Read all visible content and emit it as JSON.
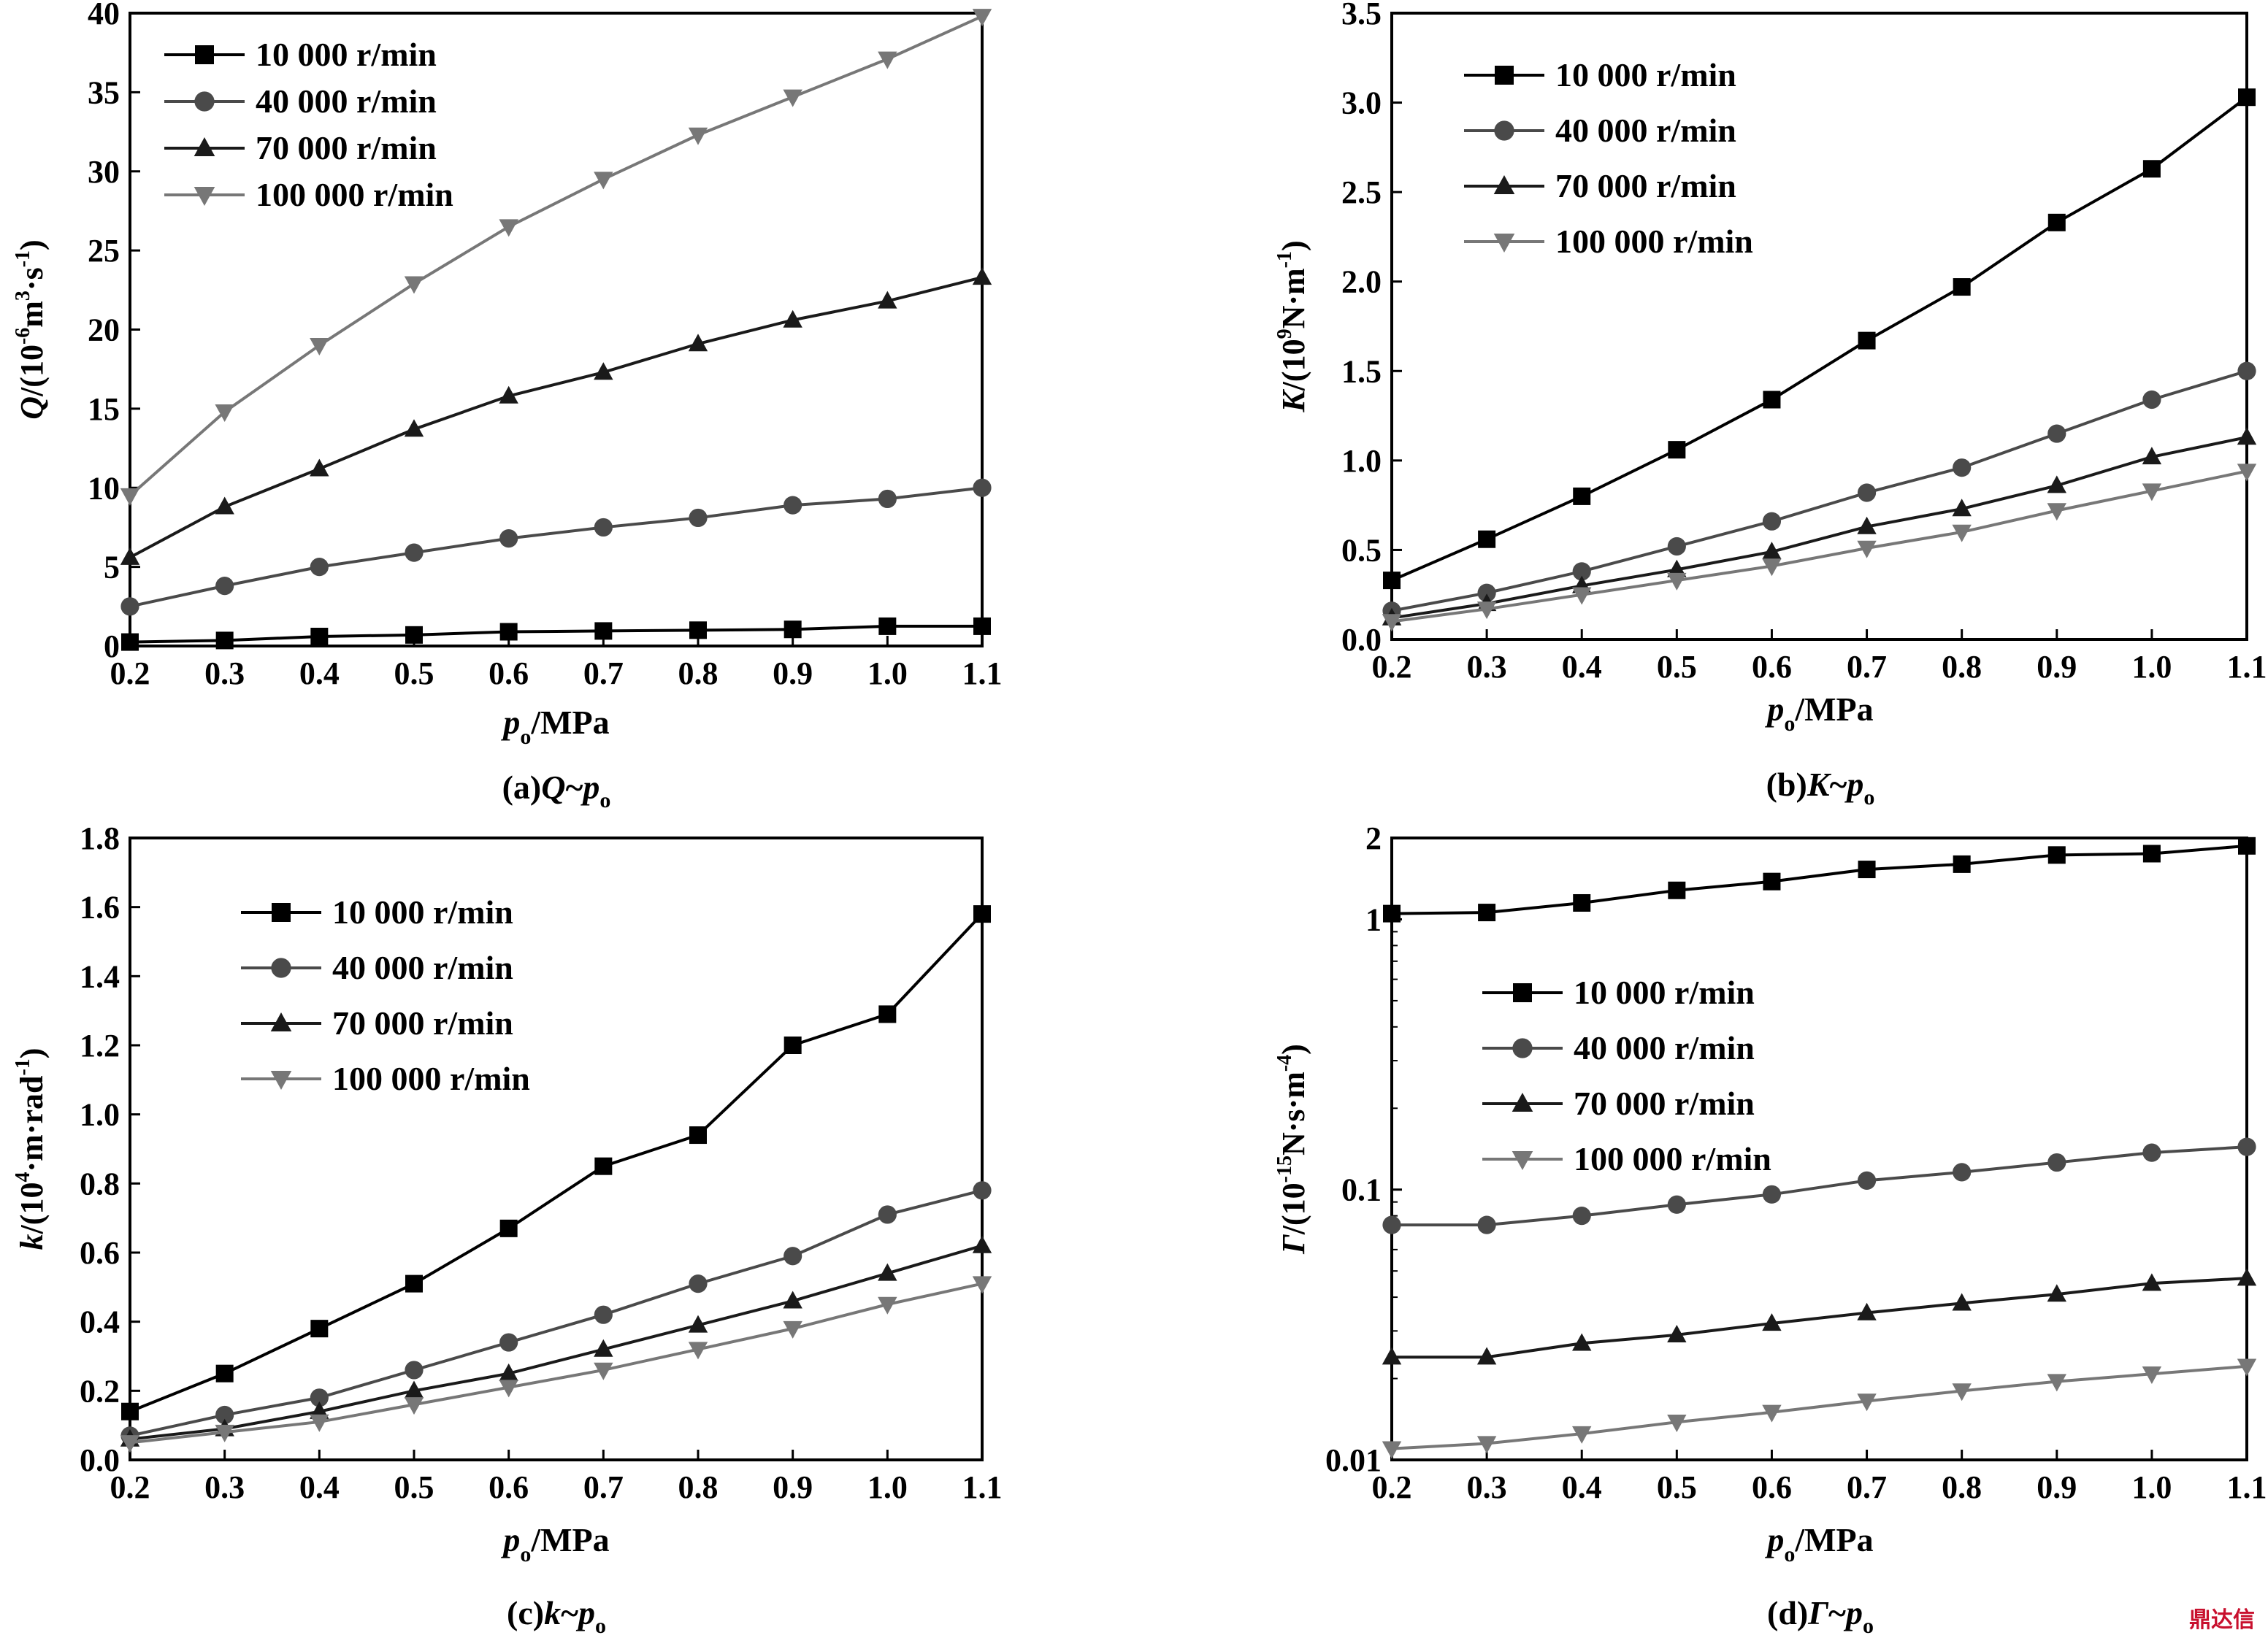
{
  "watermark": "鼎达信",
  "chart_data": [
    {
      "type": "line",
      "id": "a",
      "caption": "(a)Q~p",
      "caption_sub": "o",
      "ylabel_pre": "Q/(10",
      "ylabel_exp": "-6",
      "ylabel_post": "m",
      "ylabel_exp2": "3",
      "ylabel_post2": "·s",
      "ylabel_exp3": "-1",
      "ylabel_end": ")",
      "xlabel": "p",
      "xlabel_sub": "o",
      "xlabel_unit": "/MPa",
      "scale": "linear",
      "xlim": [
        0.2,
        1.1
      ],
      "ylim": [
        0,
        40
      ],
      "xticks": [
        "0.2",
        "0.3",
        "0.4",
        "0.5",
        "0.6",
        "0.7",
        "0.8",
        "0.9",
        "1.0",
        "1.1"
      ],
      "yticks": [
        "0",
        "5",
        "10",
        "15",
        "20",
        "25",
        "30",
        "35",
        "40"
      ],
      "x": [
        0.2,
        0.3,
        0.4,
        0.5,
        0.6,
        0.7,
        0.8,
        0.9,
        1.0,
        1.1
      ],
      "series": [
        {
          "name": "10 000 r/min",
          "marker": "square",
          "color": "#000000",
          "values": [
            0.25,
            0.35,
            0.6,
            0.7,
            0.9,
            0.95,
            1.0,
            1.05,
            1.25,
            1.25
          ]
        },
        {
          "name": "40 000 r/min",
          "marker": "circle",
          "color": "#4a4a4a",
          "values": [
            2.5,
            3.8,
            5.0,
            5.9,
            6.8,
            7.5,
            8.1,
            8.9,
            9.3,
            10.0
          ]
        },
        {
          "name": "70 000 r/min",
          "marker": "triangle-up",
          "color": "#1a1a1a",
          "values": [
            5.6,
            8.8,
            11.2,
            13.7,
            15.8,
            17.3,
            19.1,
            20.6,
            21.8,
            23.3
          ]
        },
        {
          "name": "100 000 r/min",
          "marker": "triangle-down",
          "color": "#777777",
          "values": [
            9.5,
            14.8,
            19.0,
            22.9,
            26.5,
            29.5,
            32.3,
            34.7,
            37.1,
            39.8
          ]
        }
      ]
    },
    {
      "type": "line",
      "id": "b",
      "caption": "(b)K~p",
      "caption_sub": "o",
      "ylabel_pre": "K/(10",
      "ylabel_exp": "9",
      "ylabel_post": "N·m",
      "ylabel_exp2": "-1",
      "ylabel_end": ")",
      "xlabel": "p",
      "xlabel_sub": "o",
      "xlabel_unit": "/MPa",
      "scale": "linear",
      "xlim": [
        0.2,
        1.1
      ],
      "ylim": [
        0,
        3.5
      ],
      "xticks": [
        "0.2",
        "0.3",
        "0.4",
        "0.5",
        "0.6",
        "0.7",
        "0.8",
        "0.9",
        "1.0",
        "1.1"
      ],
      "yticks": [
        "0.0",
        "0.5",
        "1.0",
        "1.5",
        "2.0",
        "2.5",
        "3.0",
        "3.5"
      ],
      "x": [
        0.2,
        0.3,
        0.4,
        0.5,
        0.6,
        0.7,
        0.8,
        0.9,
        1.0,
        1.1
      ],
      "series": [
        {
          "name": "10 000 r/min",
          "marker": "square",
          "color": "#000000",
          "values": [
            0.33,
            0.56,
            0.8,
            1.06,
            1.34,
            1.67,
            1.97,
            2.33,
            2.63,
            3.03
          ]
        },
        {
          "name": "40 000 r/min",
          "marker": "circle",
          "color": "#4a4a4a",
          "values": [
            0.16,
            0.26,
            0.38,
            0.52,
            0.66,
            0.82,
            0.96,
            1.15,
            1.34,
            1.5
          ]
        },
        {
          "name": "70 000 r/min",
          "marker": "triangle-up",
          "color": "#1a1a1a",
          "values": [
            0.12,
            0.2,
            0.3,
            0.39,
            0.49,
            0.63,
            0.73,
            0.86,
            1.02,
            1.13
          ]
        },
        {
          "name": "100 000 r/min",
          "marker": "triangle-down",
          "color": "#777777",
          "values": [
            0.1,
            0.17,
            0.25,
            0.33,
            0.41,
            0.51,
            0.6,
            0.72,
            0.83,
            0.94
          ]
        }
      ]
    },
    {
      "type": "line",
      "id": "c",
      "caption": "(c)k~p",
      "caption_sub": "o",
      "ylabel_pre": "k/(10",
      "ylabel_exp": "4",
      "ylabel_post": "·m·rad",
      "ylabel_exp2": "-1",
      "ylabel_end": ")",
      "xlabel": "p",
      "xlabel_sub": "o",
      "xlabel_unit": "/MPa",
      "scale": "linear",
      "xlim": [
        0.2,
        1.1
      ],
      "ylim": [
        0,
        1.8
      ],
      "xticks": [
        "0.2",
        "0.3",
        "0.4",
        "0.5",
        "0.6",
        "0.7",
        "0.8",
        "0.9",
        "1.0",
        "1.1"
      ],
      "yticks": [
        "0.0",
        "0.2",
        "0.4",
        "0.6",
        "0.8",
        "1.0",
        "1.2",
        "1.4",
        "1.6",
        "1.8"
      ],
      "x": [
        0.2,
        0.3,
        0.4,
        0.5,
        0.6,
        0.7,
        0.8,
        0.9,
        1.0,
        1.1
      ],
      "series": [
        {
          "name": "10 000 r/min",
          "marker": "square",
          "color": "#000000",
          "values": [
            0.14,
            0.25,
            0.38,
            0.51,
            0.67,
            0.85,
            0.94,
            1.2,
            1.29,
            1.58
          ]
        },
        {
          "name": "40 000 r/min",
          "marker": "circle",
          "color": "#4a4a4a",
          "values": [
            0.07,
            0.13,
            0.18,
            0.26,
            0.34,
            0.42,
            0.51,
            0.59,
            0.71,
            0.78
          ]
        },
        {
          "name": "70 000 r/min",
          "marker": "triangle-up",
          "color": "#1a1a1a",
          "values": [
            0.06,
            0.09,
            0.14,
            0.2,
            0.25,
            0.32,
            0.39,
            0.46,
            0.54,
            0.62
          ]
        },
        {
          "name": "100 000 r/min",
          "marker": "triangle-down",
          "color": "#777777",
          "values": [
            0.05,
            0.08,
            0.11,
            0.16,
            0.21,
            0.26,
            0.32,
            0.38,
            0.45,
            0.51
          ]
        }
      ]
    },
    {
      "type": "line",
      "id": "d",
      "caption": "(d)Γ~p",
      "caption_sub": "o",
      "ylabel_pre": "Γ/(10",
      "ylabel_exp": "-15",
      "ylabel_post": "N·s·m",
      "ylabel_exp2": "-4",
      "ylabel_end": ")",
      "xlabel": "p",
      "xlabel_sub": "o",
      "xlabel_unit": "/MPa",
      "scale": "log",
      "xlim": [
        0.2,
        1.1
      ],
      "ylim": [
        0.01,
        2
      ],
      "xticks": [
        "0.2",
        "0.3",
        "0.4",
        "0.5",
        "0.6",
        "0.7",
        "0.8",
        "0.9",
        "1.0",
        "1.1"
      ],
      "yticks": [
        "0.01",
        "0.1",
        "1",
        "2"
      ],
      "ytick_values": [
        0.01,
        0.1,
        1,
        2
      ],
      "x": [
        0.2,
        0.3,
        0.4,
        0.5,
        0.6,
        0.7,
        0.8,
        0.9,
        1.0,
        1.1
      ],
      "series": [
        {
          "name": "10 000 r/min",
          "marker": "square",
          "color": "#000000",
          "values": [
            1.05,
            1.06,
            1.15,
            1.28,
            1.38,
            1.53,
            1.6,
            1.73,
            1.75,
            1.87
          ]
        },
        {
          "name": "40 000 r/min",
          "marker": "circle",
          "color": "#4a4a4a",
          "values": [
            0.074,
            0.074,
            0.08,
            0.088,
            0.096,
            0.108,
            0.116,
            0.126,
            0.137,
            0.144
          ]
        },
        {
          "name": "70 000 r/min",
          "marker": "triangle-up",
          "color": "#1a1a1a",
          "values": [
            0.024,
            0.024,
            0.027,
            0.029,
            0.032,
            0.035,
            0.038,
            0.041,
            0.045,
            0.047
          ]
        },
        {
          "name": "100 000 r/min",
          "marker": "triangle-down",
          "color": "#777777",
          "values": [
            0.011,
            0.0115,
            0.0125,
            0.0138,
            0.015,
            0.0165,
            0.018,
            0.0195,
            0.0208,
            0.0222
          ]
        }
      ]
    }
  ]
}
